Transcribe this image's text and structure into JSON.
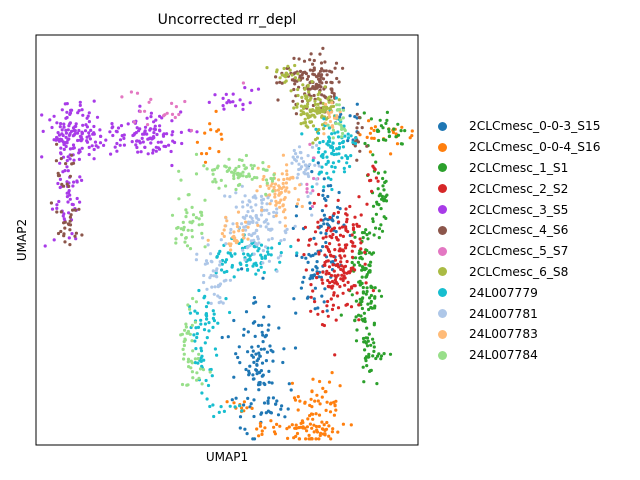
{
  "chart_data": {
    "type": "scatter",
    "title": "Uncorrected rr_depl",
    "xlabel": "UMAP1",
    "ylabel": "UMAP2",
    "xticks": false,
    "yticks": false,
    "legend_position": "right",
    "series": [
      {
        "name": "2CLCmesc_0-0-3_S15",
        "color": "#1f77b4",
        "clusters": [
          [
            0.58,
            0.82,
            0.07,
            0.18,
            110
          ],
          [
            0.74,
            0.55,
            0.06,
            0.14,
            70
          ],
          [
            0.76,
            0.42,
            0.05,
            0.07,
            30
          ],
          [
            0.63,
            0.92,
            0.05,
            0.03,
            12
          ],
          [
            0.82,
            0.2,
            0.03,
            0.06,
            12
          ]
        ]
      },
      {
        "name": "2CLCmesc_0-0-4_S16",
        "color": "#ff7f0e",
        "clusters": [
          [
            0.73,
            0.93,
            0.07,
            0.1,
            90
          ],
          [
            0.64,
            0.96,
            0.07,
            0.02,
            25
          ],
          [
            0.54,
            0.9,
            0.05,
            0.02,
            10
          ],
          [
            0.91,
            0.24,
            0.07,
            0.04,
            25
          ],
          [
            0.45,
            0.27,
            0.06,
            0.05,
            14
          ]
        ]
      },
      {
        "name": "2CLCmesc_1_S1",
        "color": "#2ca02c",
        "clusters": [
          [
            0.86,
            0.62,
            0.035,
            0.18,
            120
          ],
          [
            0.9,
            0.42,
            0.025,
            0.1,
            35
          ],
          [
            0.91,
            0.24,
            0.05,
            0.05,
            30
          ],
          [
            0.88,
            0.78,
            0.03,
            0.05,
            25
          ]
        ]
      },
      {
        "name": "2CLCmesc_2_S2",
        "color": "#d62728",
        "clusters": [
          [
            0.78,
            0.56,
            0.07,
            0.15,
            160
          ],
          [
            0.88,
            0.35,
            0.02,
            0.05,
            10
          ],
          [
            0.82,
            0.48,
            0.05,
            0.1,
            30
          ]
        ]
      },
      {
        "name": "2CLCmesc_3_S5",
        "color": "#a83be8",
        "clusters": [
          [
            0.1,
            0.24,
            0.07,
            0.08,
            130
          ],
          [
            0.08,
            0.4,
            0.04,
            0.1,
            50
          ],
          [
            0.3,
            0.24,
            0.12,
            0.05,
            110
          ],
          [
            0.52,
            0.16,
            0.06,
            0.03,
            20
          ]
        ]
      },
      {
        "name": "2CLCmesc_4_S6",
        "color": "#8c564b",
        "clusters": [
          [
            0.72,
            0.12,
            0.08,
            0.06,
            140
          ],
          [
            0.08,
            0.46,
            0.03,
            0.05,
            25
          ],
          [
            0.07,
            0.34,
            0.03,
            0.07,
            15
          ],
          [
            0.85,
            0.25,
            0.04,
            0.05,
            15
          ]
        ]
      },
      {
        "name": "2CLCmesc_5_S7",
        "color": "#e377c2",
        "clusters": [
          [
            0.35,
            0.2,
            0.15,
            0.08,
            20
          ],
          [
            0.72,
            0.35,
            0.05,
            0.1,
            10
          ]
        ]
      },
      {
        "name": "2CLCmesc_6_S8",
        "color": "#aabb44",
        "clusters": [
          [
            0.73,
            0.18,
            0.06,
            0.05,
            110
          ],
          [
            0.66,
            0.1,
            0.04,
            0.03,
            20
          ]
        ]
      },
      {
        "name": "24L007779",
        "color": "#17becf",
        "clusters": [
          [
            0.77,
            0.28,
            0.05,
            0.08,
            90
          ],
          [
            0.56,
            0.54,
            0.1,
            0.05,
            80
          ],
          [
            0.44,
            0.68,
            0.05,
            0.06,
            35
          ],
          [
            0.44,
            0.8,
            0.03,
            0.06,
            25
          ],
          [
            0.5,
            0.91,
            0.04,
            0.03,
            10
          ]
        ]
      },
      {
        "name": "24L007781",
        "color": "#aec7e8",
        "clusters": [
          [
            0.58,
            0.46,
            0.08,
            0.07,
            110
          ],
          [
            0.46,
            0.58,
            0.05,
            0.07,
            40
          ],
          [
            0.7,
            0.32,
            0.04,
            0.06,
            40
          ]
        ]
      },
      {
        "name": "24L007783",
        "color": "#ffbb78",
        "clusters": [
          [
            0.64,
            0.38,
            0.06,
            0.06,
            70
          ],
          [
            0.52,
            0.48,
            0.05,
            0.04,
            30
          ],
          [
            0.78,
            0.2,
            0.03,
            0.04,
            15
          ]
        ]
      },
      {
        "name": "24L007784",
        "color": "#98df8a",
        "clusters": [
          [
            0.52,
            0.34,
            0.1,
            0.04,
            70
          ],
          [
            0.4,
            0.46,
            0.04,
            0.08,
            40
          ],
          [
            0.4,
            0.72,
            0.03,
            0.08,
            25
          ],
          [
            0.42,
            0.82,
            0.04,
            0.04,
            20
          ],
          [
            0.8,
            0.22,
            0.03,
            0.04,
            20
          ]
        ]
      }
    ]
  }
}
